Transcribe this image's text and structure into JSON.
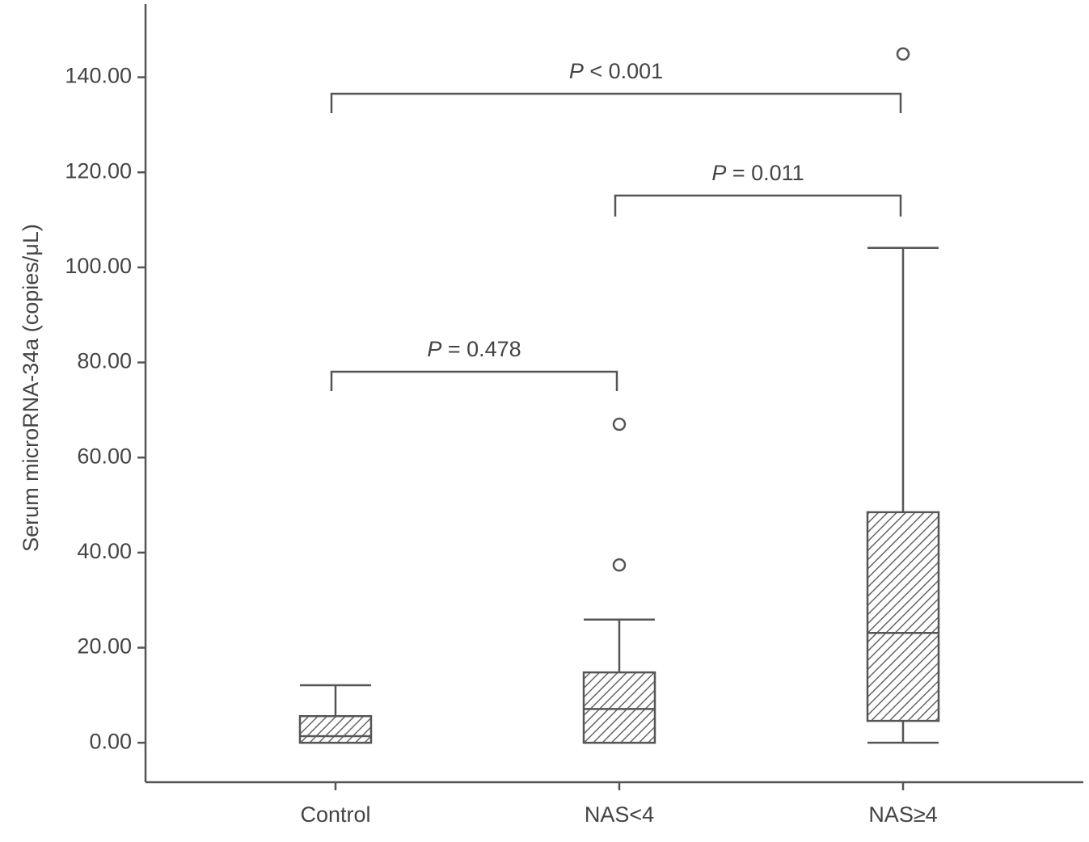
{
  "chart_data": {
    "type": "box",
    "y_label": "Serum microRNA-34a (copies/μL)",
    "categories": [
      "Control",
      "NAS<4",
      "NAS≥4"
    ],
    "boxes": [
      {
        "whislo": 0,
        "q1": 0,
        "med": 1.4,
        "q3": 5.6,
        "whishi": 12.1,
        "fliers": []
      },
      {
        "whislo": 0,
        "q1": 0,
        "med": 7.1,
        "q3": 14.8,
        "whishi": 25.9,
        "fliers": [
          37.4,
          67
        ]
      },
      {
        "whislo": 0,
        "q1": 4.6,
        "med": 23.1,
        "q3": 48.5,
        "whishi": 104.1,
        "fliers": [
          144.9
        ]
      }
    ],
    "color": "#555555",
    "ylim": [
      -8.3,
      155.4
    ],
    "yticks": [
      {
        "value": 0,
        "label": "0.00"
      },
      {
        "value": 20,
        "label": "20.00"
      },
      {
        "value": 40,
        "label": "40.00"
      },
      {
        "value": 60,
        "label": "60.00"
      },
      {
        "value": 80,
        "label": "80.00"
      },
      {
        "value": 100,
        "label": "100.00"
      },
      {
        "value": 120,
        "label": "120.00"
      },
      {
        "value": 140,
        "label": "140.00"
      }
    ],
    "annotations": [
      "P < 0.001",
      "P = 0.011",
      "P = 0.478"
    ]
  }
}
